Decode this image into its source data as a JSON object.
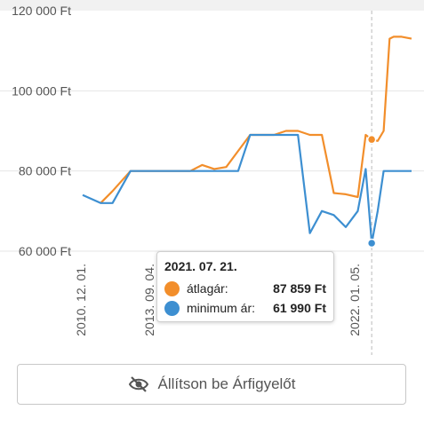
{
  "chart_data": {
    "type": "line",
    "title": "",
    "xlabel": "",
    "ylabel": "",
    "y_unit": "Ft",
    "ylim": [
      60000,
      120000
    ],
    "y_ticks": [
      60000,
      80000,
      100000,
      120000
    ],
    "y_tick_labels": [
      "60 000 Ft",
      "80 000 Ft",
      "100 000 Ft",
      "120 000 Ft"
    ],
    "x_tick_labels": [
      "2010. 12. 01.",
      "2013. 09. 04.",
      "20",
      "20",
      "2022. 01. 05."
    ],
    "x": [
      "2009-06",
      "2010-03",
      "2010-09",
      "2011-06",
      "2011-12",
      "2012-06",
      "2012-12",
      "2013-06",
      "2013-12",
      "2014-06",
      "2014-12",
      "2015-06",
      "2015-12",
      "2016-06",
      "2016-12",
      "2017-06",
      "2017-12",
      "2018-06",
      "2018-12",
      "2019-06",
      "2019-12",
      "2020-06",
      "2020-12",
      "2021-04",
      "2021-07",
      "2021-10",
      "2022-01",
      "2022-04",
      "2022-06",
      "2022-10",
      "2023-03"
    ],
    "series": [
      {
        "name": "átlagár",
        "color": "#f28e2b",
        "values": [
          null,
          72000,
          75000,
          80000,
          80000,
          80000,
          80000,
          80000,
          80000,
          81500,
          80500,
          81000,
          85000,
          89000,
          89000,
          89000,
          90000,
          90000,
          89000,
          89000,
          74500,
          74200,
          73500,
          89000,
          87859,
          87500,
          90000,
          113000,
          113500,
          113500,
          113000
        ]
      },
      {
        "name": "minimum ár",
        "color": "#3d8fd1",
        "values": [
          74000,
          72000,
          72000,
          80000,
          80000,
          80000,
          80000,
          80000,
          80000,
          80000,
          80000,
          80000,
          80000,
          89000,
          89000,
          89000,
          89000,
          89000,
          64500,
          70000,
          69000,
          66000,
          70000,
          80500,
          61990,
          70000,
          80000,
          80000,
          80000,
          80000,
          80000
        ]
      }
    ],
    "highlight_index": 24,
    "grid": true,
    "legend": "none"
  },
  "tooltip": {
    "date": "2021. 07. 21.",
    "rows": [
      {
        "label": "átlagár:",
        "value": "87 859 Ft",
        "color": "#f28e2b"
      },
      {
        "label": "minimum ár:",
        "value": "61 990 Ft",
        "color": "#3d8fd1"
      }
    ]
  },
  "alert_button": {
    "label": "Állítson be Árfigyelőt",
    "icon": "eye-slash-icon"
  }
}
